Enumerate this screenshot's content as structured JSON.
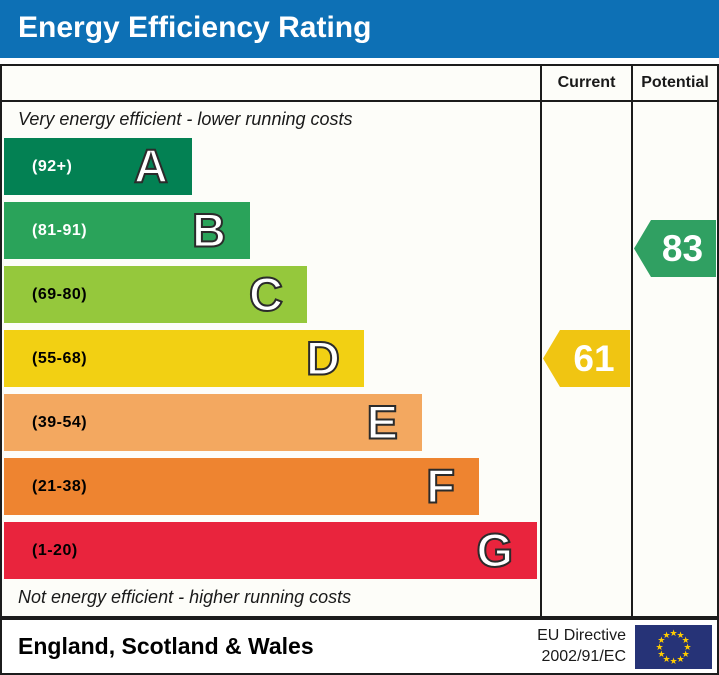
{
  "title": "Energy Efficiency Rating",
  "table": {
    "columns": {
      "current": "Current",
      "potential": "Potential"
    },
    "top_note": "Very energy efficient - lower running costs",
    "bottom_note": "Not energy efficient - higher running costs"
  },
  "bands": [
    {
      "letter": "A",
      "range": "(92+)",
      "color": "#038153",
      "range_text_color": "#ffffff"
    },
    {
      "letter": "B",
      "range": "(81-91)",
      "color": "#2aa35a",
      "range_text_color": "#ffffff"
    },
    {
      "letter": "C",
      "range": "(69-80)",
      "color": "#95c83c",
      "range_text_color": "#000000"
    },
    {
      "letter": "D",
      "range": "(55-68)",
      "color": "#f2d013",
      "range_text_color": "#000000"
    },
    {
      "letter": "E",
      "range": "(39-54)",
      "color": "#f3a860",
      "range_text_color": "#000000"
    },
    {
      "letter": "F",
      "range": "(21-38)",
      "color": "#ee8430",
      "range_text_color": "#000000"
    },
    {
      "letter": "G",
      "range": "(1-20)",
      "color": "#e9243d",
      "range_text_color": "#000000"
    }
  ],
  "ratings": {
    "current": {
      "value": "61",
      "color": "#f0c512"
    },
    "potential": {
      "value": "83",
      "color": "#30a062"
    }
  },
  "footer": {
    "region": "England, Scotland & Wales",
    "directive": [
      "EU Directive",
      "2002/91/EC"
    ],
    "flag_color": "#263377",
    "star_color": "#ffcc33"
  },
  "theme": {
    "title_bar_color": "#0d70b5"
  },
  "chart_data": {
    "type": "bar",
    "title": "Energy Efficiency Rating",
    "categories": [
      "A",
      "B",
      "C",
      "D",
      "E",
      "F",
      "G"
    ],
    "band_ranges": [
      "92+",
      "81-91",
      "69-80",
      "55-68",
      "39-54",
      "21-38",
      "1-20"
    ],
    "band_colors": [
      "#038153",
      "#2aa35a",
      "#95c83c",
      "#f2d013",
      "#f3a860",
      "#ee8430",
      "#e9243d"
    ],
    "scale": [
      1,
      100
    ],
    "series": [
      {
        "name": "Current",
        "value": 61,
        "band": "D",
        "color": "#f0c512"
      },
      {
        "name": "Potential",
        "value": 83,
        "band": "B",
        "color": "#30a062"
      }
    ],
    "annotations": [
      "Very energy efficient - lower running costs",
      "Not energy efficient - higher running costs"
    ],
    "footer_region": "England, Scotland & Wales",
    "footer_directive": "EU Directive 2002/91/EC",
    "legend_position": "none",
    "grid": false
  }
}
